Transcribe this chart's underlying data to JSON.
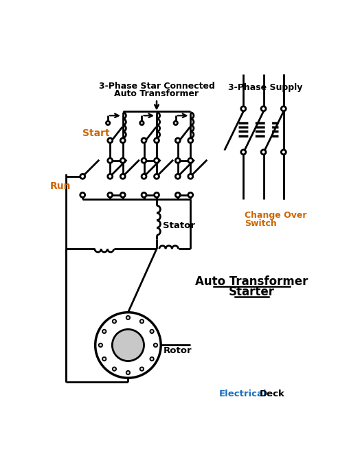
{
  "title_line1": "Auto Transformer",
  "title_line2": "Starter",
  "label_3phase_star_l1": "3-Phase Star Connected",
  "label_3phase_star_l2": "Auto Transformer",
  "label_3phase_supply": "3-Phase Supply",
  "label_start": "Start",
  "label_run": "Run",
  "label_change_over_l1": "Change Over",
  "label_change_over_l2": "Switch",
  "label_stator": "Stator",
  "label_rotor": "Rotor",
  "label_elec": "Electrical",
  "label_deck": "Deck",
  "bg_color": "#ffffff",
  "line_color": "#000000",
  "blue_color": "#1a6fbf",
  "orange_color": "#cc6600",
  "lw": 2.0
}
